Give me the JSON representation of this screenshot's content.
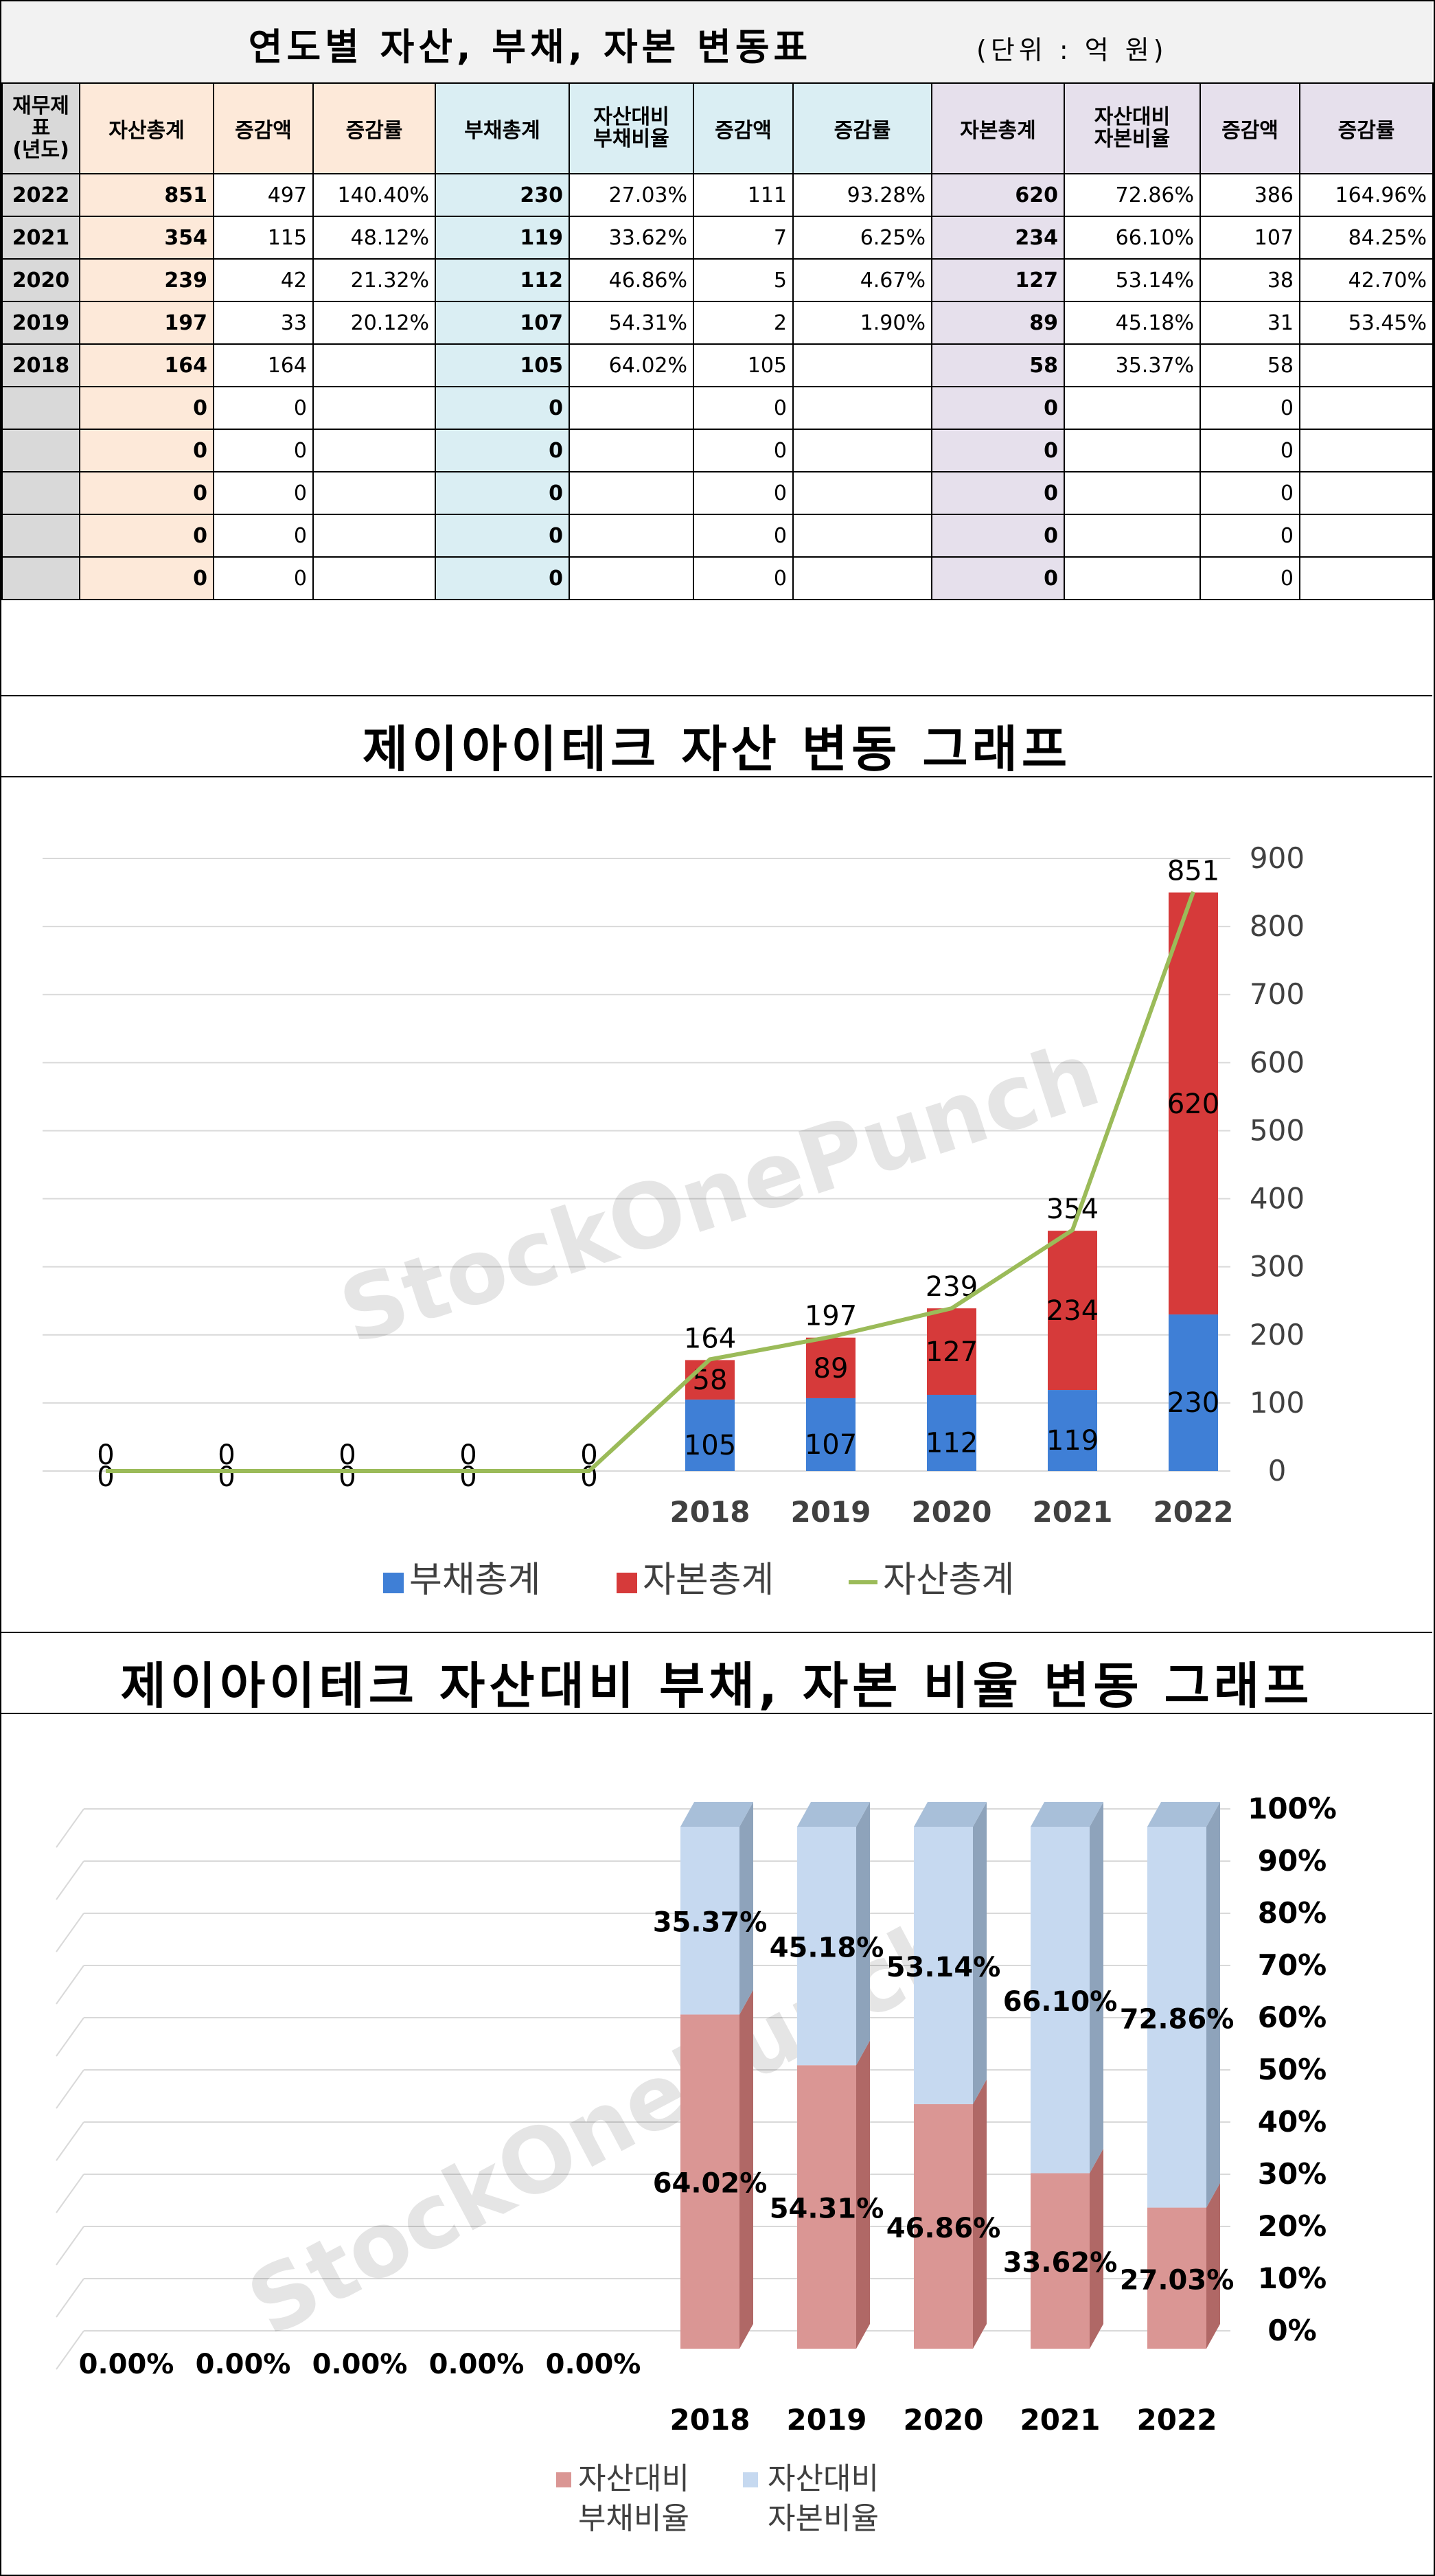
{
  "table": {
    "title": "연도별 자산, 부채, 자본 변동표",
    "unit": "(단위 : 억 원)",
    "headers": {
      "year": "재무제표\n(년도)",
      "asset_total": "자산총계",
      "asset_change": "증감액",
      "asset_rate": "증감률",
      "debt_total": "부채총계",
      "debt_ratio": "자산대비\n부채비율",
      "debt_change": "증감액",
      "debt_rate": "증감률",
      "cap_total": "자본총계",
      "cap_ratio": "자산대비\n자본비율",
      "cap_change": "증감액",
      "cap_rate": "증감률"
    },
    "rows": [
      {
        "year": "2022",
        "asset_total": "851",
        "asset_change": "497",
        "asset_rate": "140.40%",
        "debt_total": "230",
        "debt_ratio": "27.03%",
        "debt_change": "111",
        "debt_rate": "93.28%",
        "cap_total": "620",
        "cap_ratio": "72.86%",
        "cap_change": "386",
        "cap_rate": "164.96%"
      },
      {
        "year": "2021",
        "asset_total": "354",
        "asset_change": "115",
        "asset_rate": "48.12%",
        "debt_total": "119",
        "debt_ratio": "33.62%",
        "debt_change": "7",
        "debt_rate": "6.25%",
        "cap_total": "234",
        "cap_ratio": "66.10%",
        "cap_change": "107",
        "cap_rate": "84.25%"
      },
      {
        "year": "2020",
        "asset_total": "239",
        "asset_change": "42",
        "asset_rate": "21.32%",
        "debt_total": "112",
        "debt_ratio": "46.86%",
        "debt_change": "5",
        "debt_rate": "4.67%",
        "cap_total": "127",
        "cap_ratio": "53.14%",
        "cap_change": "38",
        "cap_rate": "42.70%"
      },
      {
        "year": "2019",
        "asset_total": "197",
        "asset_change": "33",
        "asset_rate": "20.12%",
        "debt_total": "107",
        "debt_ratio": "54.31%",
        "debt_change": "2",
        "debt_rate": "1.90%",
        "cap_total": "89",
        "cap_ratio": "45.18%",
        "cap_change": "31",
        "cap_rate": "53.45%"
      },
      {
        "year": "2018",
        "asset_total": "164",
        "asset_change": "164",
        "asset_rate": "",
        "debt_total": "105",
        "debt_ratio": "64.02%",
        "debt_change": "105",
        "debt_rate": "",
        "cap_total": "58",
        "cap_ratio": "35.37%",
        "cap_change": "58",
        "cap_rate": ""
      },
      {
        "year": "",
        "asset_total": "0",
        "asset_change": "0",
        "asset_rate": "",
        "debt_total": "0",
        "debt_ratio": "",
        "debt_change": "0",
        "debt_rate": "",
        "cap_total": "0",
        "cap_ratio": "",
        "cap_change": "0",
        "cap_rate": ""
      },
      {
        "year": "",
        "asset_total": "0",
        "asset_change": "0",
        "asset_rate": "",
        "debt_total": "0",
        "debt_ratio": "",
        "debt_change": "0",
        "debt_rate": "",
        "cap_total": "0",
        "cap_ratio": "",
        "cap_change": "0",
        "cap_rate": ""
      },
      {
        "year": "",
        "asset_total": "0",
        "asset_change": "0",
        "asset_rate": "",
        "debt_total": "0",
        "debt_ratio": "",
        "debt_change": "0",
        "debt_rate": "",
        "cap_total": "0",
        "cap_ratio": "",
        "cap_change": "0",
        "cap_rate": ""
      },
      {
        "year": "",
        "asset_total": "0",
        "asset_change": "0",
        "asset_rate": "",
        "debt_total": "0",
        "debt_ratio": "",
        "debt_change": "0",
        "debt_rate": "",
        "cap_total": "0",
        "cap_ratio": "",
        "cap_change": "0",
        "cap_rate": ""
      },
      {
        "year": "",
        "asset_total": "0",
        "asset_change": "0",
        "asset_rate": "",
        "debt_total": "0",
        "debt_ratio": "",
        "debt_change": "0",
        "debt_rate": "",
        "cap_total": "0",
        "cap_ratio": "",
        "cap_change": "0",
        "cap_rate": ""
      }
    ]
  },
  "watermark": "StockOnePunch",
  "colors": {
    "asset_bg": "#fde9d9",
    "debt_bg": "#daeef3",
    "cap_bg": "#e6e0ec",
    "year_bg": "#d9d9d9",
    "debt_bar": "#3f7fd6",
    "cap_bar": "#d63a3a",
    "asset_line": "#9bbb59",
    "ratio_debt": "#da9694",
    "ratio_cap": "#c6d9f0"
  },
  "chart_data": [
    {
      "type": "bar",
      "title": "제이아이테크 자산 변동 그래프",
      "categories": [
        "",
        "",
        "",
        "",
        "",
        "2018",
        "2019",
        "2020",
        "2021",
        "2022"
      ],
      "series": [
        {
          "name": "부채총계",
          "kind": "stacked-bar",
          "values": [
            0,
            0,
            0,
            0,
            0,
            105,
            107,
            112,
            119,
            230
          ]
        },
        {
          "name": "자본총계",
          "kind": "stacked-bar",
          "values": [
            0,
            0,
            0,
            0,
            0,
            58,
            89,
            127,
            234,
            620
          ]
        },
        {
          "name": "자산총계",
          "kind": "line",
          "values": [
            0,
            0,
            0,
            0,
            0,
            164,
            197,
            239,
            354,
            851
          ]
        }
      ],
      "ylim": [
        0,
        900
      ],
      "yticks": [
        "0",
        "100",
        "200",
        "300",
        "400",
        "500",
        "600",
        "700",
        "800",
        "900"
      ],
      "y_axis_side": "right",
      "grid": true,
      "legend": "bottom"
    },
    {
      "type": "bar",
      "title": "제이아이테크 자산대비 부채, 자본 비율 변동 그래프",
      "categories": [
        "",
        "",
        "",
        "",
        "",
        "2018",
        "2019",
        "2020",
        "2021",
        "2022"
      ],
      "series": [
        {
          "name": "자산대비 부채비율",
          "kind": "stacked-100",
          "values": [
            0,
            0,
            0,
            0,
            0,
            64.02,
            54.31,
            46.86,
            33.62,
            27.03
          ],
          "labels": [
            "0.00%",
            "0.00%",
            "0.00%",
            "0.00%",
            "0.00%",
            "64.02%",
            "54.31%",
            "46.86%",
            "33.62%",
            "27.03%"
          ]
        },
        {
          "name": "자산대비 자본비율",
          "kind": "stacked-100",
          "values": [
            0,
            0,
            0,
            0,
            0,
            35.37,
            45.18,
            53.14,
            66.1,
            72.86
          ],
          "labels": [
            "",
            "",
            "",
            "",
            "",
            "35.37%",
            "45.18%",
            "53.14%",
            "66.10%",
            "72.86%"
          ]
        }
      ],
      "ylim": [
        0,
        100
      ],
      "yticks": [
        "0%",
        "10%",
        "20%",
        "30%",
        "40%",
        "50%",
        "60%",
        "70%",
        "80%",
        "90%",
        "100%"
      ],
      "y_axis_side": "right",
      "grid": true,
      "legend": "bottom",
      "legend_labels": [
        [
          "자산대비",
          "부채비율"
        ],
        [
          "자산대비",
          "자본비율"
        ]
      ]
    }
  ]
}
